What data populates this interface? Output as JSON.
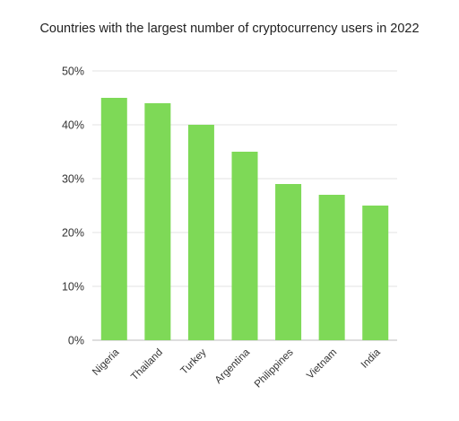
{
  "chart_data": {
    "type": "bar",
    "title": "Countries with the largest number of cryptocurrency users in 2022",
    "xlabel": "",
    "ylabel": "",
    "categories": [
      "Nigeria",
      "Thailand",
      "Turkey",
      "Argentina",
      "Philippines",
      "Vietnam",
      "India"
    ],
    "values": [
      45,
      44,
      40,
      35,
      29,
      27,
      25
    ],
    "ylim": [
      0,
      50
    ],
    "yticks": [
      "0%",
      "10%",
      "20%",
      "30%",
      "40%",
      "50%"
    ],
    "bar_color": "#7ed957",
    "grid": true,
    "legend": "none"
  }
}
